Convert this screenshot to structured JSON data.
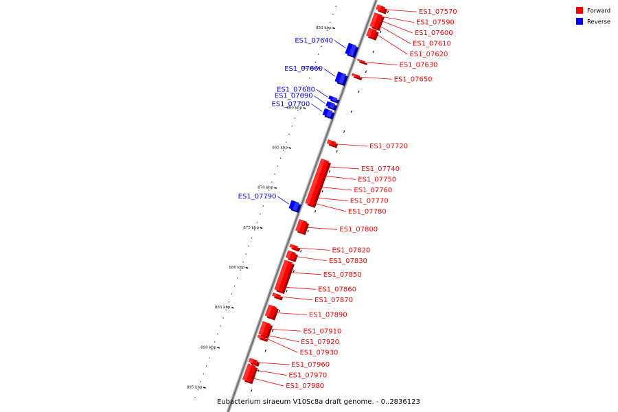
{
  "legend": [
    {
      "label": "Forward",
      "color": "#ff0000"
    },
    {
      "label": "Reverse",
      "color": "#0000ff"
    }
  ],
  "caption": "Eubacterium siraeum V10Sc8a draft genome. - 0..2836123",
  "scale_marks": [
    {
      "label": "850 kbp",
      "pos": 850
    },
    {
      "label": "855 kbp",
      "pos": 855
    },
    {
      "label": "860 kbp",
      "pos": 860
    },
    {
      "label": "865 kbp",
      "pos": 865
    },
    {
      "label": "870 kbp",
      "pos": 870
    },
    {
      "label": "875 kbp",
      "pos": 875
    },
    {
      "label": "880 kbp",
      "pos": 880
    },
    {
      "label": "885 kbp",
      "pos": 885
    },
    {
      "label": "890 kbp",
      "pos": 890
    },
    {
      "label": "895 kbp",
      "pos": 895
    }
  ],
  "genes": [
    {
      "name": "ES1_07570",
      "strand": "forward",
      "start": 845.6,
      "end": 846.2
    },
    {
      "name": "ES1_07590",
      "strand": "forward",
      "start": 846.6,
      "end": 847.0
    },
    {
      "name": "ES1_07600",
      "strand": "forward",
      "start": 847.0,
      "end": 847.6
    },
    {
      "name": "ES1_07610",
      "strand": "forward",
      "start": 847.6,
      "end": 848.3
    },
    {
      "name": "ES1_07620",
      "strand": "forward",
      "start": 848.5,
      "end": 849.5
    },
    {
      "name": "ES1_07630",
      "strand": "forward",
      "start": 852.4,
      "end": 852.6
    },
    {
      "name": "ES1_07640",
      "strand": "reverse",
      "start": 851.0,
      "end": 852.3
    },
    {
      "name": "ES1_07650",
      "strand": "forward",
      "start": 854.2,
      "end": 854.5
    },
    {
      "name": "ES1_07660",
      "strand": "reverse",
      "start": 854.6,
      "end": 855.8
    },
    {
      "name": "ES1_07680",
      "strand": "reverse",
      "start": 857.6,
      "end": 858.0
    },
    {
      "name": "ES1_07690",
      "strand": "reverse",
      "start": 858.3,
      "end": 858.9
    },
    {
      "name": "ES1_07700",
      "strand": "reverse",
      "start": 859.2,
      "end": 860.0
    },
    {
      "name": "ES1_07720",
      "strand": "forward",
      "start": 862.5,
      "end": 863.0
    },
    {
      "name": "ES1_07740",
      "strand": "forward",
      "start": 864.9,
      "end": 866.3
    },
    {
      "name": "ES1_07750",
      "strand": "forward",
      "start": 866.3,
      "end": 867.2
    },
    {
      "name": "ES1_07760",
      "strand": "forward",
      "start": 867.2,
      "end": 869.1
    },
    {
      "name": "ES1_07770",
      "strand": "forward",
      "start": 869.1,
      "end": 869.9
    },
    {
      "name": "ES1_07780",
      "strand": "forward",
      "start": 869.9,
      "end": 870.5
    },
    {
      "name": "ES1_07790",
      "strand": "reverse",
      "start": 870.7,
      "end": 871.7
    },
    {
      "name": "ES1_07800",
      "strand": "forward",
      "start": 872.5,
      "end": 873.9
    },
    {
      "name": "ES1_07820",
      "strand": "forward",
      "start": 875.6,
      "end": 876.0
    },
    {
      "name": "ES1_07830",
      "strand": "forward",
      "start": 876.4,
      "end": 877.3
    },
    {
      "name": "ES1_07850",
      "strand": "forward",
      "start": 877.6,
      "end": 880.1
    },
    {
      "name": "ES1_07860",
      "strand": "forward",
      "start": 880.1,
      "end": 881.3
    },
    {
      "name": "ES1_07870",
      "strand": "forward",
      "start": 881.7,
      "end": 882.1
    },
    {
      "name": "ES1_07890",
      "strand": "forward",
      "start": 883.2,
      "end": 884.6
    },
    {
      "name": "ES1_07910",
      "strand": "forward",
      "start": 885.3,
      "end": 886.6
    },
    {
      "name": "ES1_07920",
      "strand": "forward",
      "start": 886.6,
      "end": 886.9
    },
    {
      "name": "ES1_07930",
      "strand": "forward",
      "start": 887.0,
      "end": 887.3
    },
    {
      "name": "ES1_07960",
      "strand": "forward",
      "start": 889.9,
      "end": 890.4
    },
    {
      "name": "ES1_07970",
      "strand": "forward",
      "start": 890.6,
      "end": 891.6
    },
    {
      "name": "ES1_07980",
      "strand": "forward",
      "start": 891.6,
      "end": 892.6
    }
  ]
}
